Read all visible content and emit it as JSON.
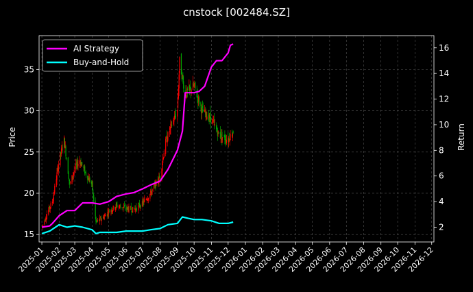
{
  "chart_data": {
    "type": "line",
    "title": "cnstock [002484.SZ]",
    "xlabel": "",
    "ylabel": "Price",
    "y2label": "Return",
    "grid": true,
    "legend_position": "top-left",
    "x_ticks": [
      "2025-01",
      "2025-02",
      "2025-03",
      "2025-04",
      "2025-05",
      "2025-06",
      "2025-07",
      "2025-08",
      "2025-09",
      "2025-10",
      "2025-11",
      "2025-12",
      "2026-01",
      "2026-02",
      "2026-03",
      "2026-04",
      "2026-05",
      "2026-06",
      "2026-07",
      "2026-08",
      "2026-09",
      "2026-10",
      "2026-11",
      "2026-12"
    ],
    "xlim": [
      "2024-12-27",
      "2026-12-05"
    ],
    "ylim": [
      14.1,
      39.1
    ],
    "y_ticks": [
      15,
      20,
      25,
      30,
      35
    ],
    "y2lim": [
      0.85,
      16.95
    ],
    "y2_ticks": [
      2,
      4,
      6,
      8,
      10,
      12,
      14,
      16
    ],
    "colors": {
      "up": "#ff0000",
      "down": "#00aa00",
      "ai_strategy": "#ff00ff",
      "buy_and_hold": "#00ffff",
      "grid": "#555555",
      "background": "#000000"
    },
    "price_series": {
      "name": "",
      "axis": "left",
      "x": [
        "2025-01-02",
        "2025-01-10",
        "2025-01-20",
        "2025-02-01",
        "2025-02-10",
        "2025-02-20",
        "2025-03-01",
        "2025-03-10",
        "2025-03-20",
        "2025-04-01",
        "2025-04-08",
        "2025-04-20",
        "2025-05-01",
        "2025-05-15",
        "2025-06-01",
        "2025-06-15",
        "2025-07-01",
        "2025-07-15",
        "2025-08-01",
        "2025-08-10",
        "2025-08-20",
        "2025-09-01",
        "2025-09-05",
        "2025-09-15",
        "2025-10-01",
        "2025-10-15",
        "2025-11-01",
        "2025-11-15",
        "2025-12-01",
        "2025-12-05",
        "2025-12-10"
      ],
      "close": [
        16.0,
        17.5,
        19.0,
        24.0,
        26.5,
        21.0,
        23.0,
        24.0,
        22.5,
        21.0,
        16.5,
        17.0,
        17.8,
        18.5,
        18.2,
        18.0,
        18.8,
        20.0,
        22.0,
        26.0,
        28.0,
        30.0,
        36.0,
        32.0,
        33.0,
        30.0,
        29.0,
        27.0,
        26.5,
        27.0,
        27.5
      ]
    },
    "series": [
      {
        "name": "AI Strategy",
        "axis": "right",
        "x": [
          "2025-01-01",
          "2025-01-15",
          "2025-01-20",
          "2025-02-01",
          "2025-02-15",
          "2025-03-01",
          "2025-03-15",
          "2025-04-01",
          "2025-04-15",
          "2025-05-01",
          "2025-05-15",
          "2025-06-01",
          "2025-06-15",
          "2025-07-01",
          "2025-07-15",
          "2025-08-01",
          "2025-08-15",
          "2025-09-01",
          "2025-09-10",
          "2025-09-15",
          "2025-10-01",
          "2025-10-10",
          "2025-10-20",
          "2025-11-01",
          "2025-11-10",
          "2025-11-20",
          "2025-12-01",
          "2025-12-05",
          "2025-12-10"
        ],
        "values": [
          2.0,
          2.1,
          2.3,
          2.9,
          3.3,
          3.3,
          3.9,
          3.9,
          3.8,
          4.0,
          4.4,
          4.6,
          4.7,
          5.0,
          5.3,
          5.6,
          6.5,
          8.0,
          9.5,
          12.5,
          12.5,
          12.6,
          13.0,
          14.5,
          15.0,
          15.0,
          15.6,
          16.2,
          16.3
        ]
      },
      {
        "name": "Buy-and-Hold",
        "axis": "right",
        "x": [
          "2025-01-01",
          "2025-01-15",
          "2025-02-01",
          "2025-02-15",
          "2025-03-01",
          "2025-03-15",
          "2025-04-01",
          "2025-04-08",
          "2025-04-15",
          "2025-05-01",
          "2025-05-15",
          "2025-06-01",
          "2025-06-15",
          "2025-07-01",
          "2025-07-15",
          "2025-08-01",
          "2025-08-15",
          "2025-09-01",
          "2025-09-10",
          "2025-09-20",
          "2025-10-01",
          "2025-10-15",
          "2025-11-01",
          "2025-11-15",
          "2025-12-01",
          "2025-12-10"
        ],
        "values": [
          1.5,
          1.7,
          2.2,
          2.0,
          2.1,
          2.0,
          1.8,
          1.5,
          1.6,
          1.6,
          1.6,
          1.7,
          1.7,
          1.7,
          1.8,
          1.9,
          2.2,
          2.3,
          2.8,
          2.7,
          2.6,
          2.6,
          2.5,
          2.3,
          2.3,
          2.4
        ]
      }
    ]
  }
}
